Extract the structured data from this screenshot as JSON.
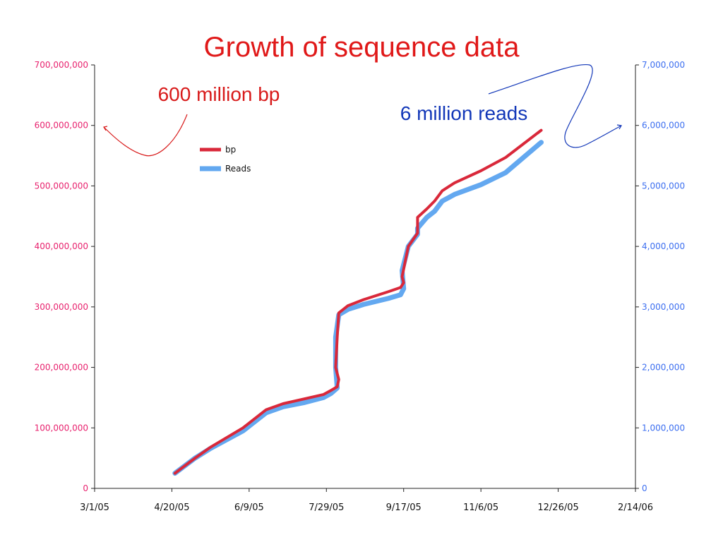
{
  "colors": {
    "bp": "#d9283a",
    "reads": "#63a8f0",
    "left_axis": "#e8226e",
    "right_axis": "#3d6ff0",
    "title": "#e01818",
    "annot_bp": "#d81a1a",
    "annot_reads": "#1237b8",
    "axis_line": "#222222"
  },
  "chart_data": {
    "type": "line",
    "title": "Growth of sequence data",
    "x_tick_labels": [
      "3/1/05",
      "4/20/05",
      "6/9/05",
      "7/29/05",
      "9/17/05",
      "11/6/05",
      "12/26/05",
      "2/14/06"
    ],
    "x_ticks_iso": [
      "2005-03-01",
      "2005-04-20",
      "2005-06-09",
      "2005-07-29",
      "2005-09-17",
      "2005-11-06",
      "2005-12-26",
      "2006-02-14"
    ],
    "xlim": [
      "2005-03-01",
      "2006-02-14"
    ],
    "y_left_ticks": [
      "0",
      "100,000,000",
      "200,000,000",
      "300,000,000",
      "400,000,000",
      "500,000,000",
      "600,000,000",
      "700,000,000"
    ],
    "y_left_lim": [
      0,
      700000000
    ],
    "y_right_ticks": [
      "0",
      "1,000,000",
      "2,000,000",
      "3,000,000",
      "4,000,000",
      "5,000,000",
      "6,000,000",
      "7,000,000"
    ],
    "y_right_lim": [
      0,
      7000000
    ],
    "legend_position": "upper-left",
    "series": [
      {
        "name": "bp",
        "axis": "left",
        "x": [
          "2005-04-22",
          "2005-05-05",
          "2005-05-15",
          "2005-06-05",
          "2005-06-20",
          "2005-07-01",
          "2005-07-15",
          "2005-07-27",
          "2005-08-01",
          "2005-08-05",
          "2005-08-06",
          "2005-08-04",
          "2005-08-05",
          "2005-08-06",
          "2005-08-12",
          "2005-08-22",
          "2005-09-07",
          "2005-09-15",
          "2005-09-17",
          "2005-09-16",
          "2005-09-20",
          "2005-09-26",
          "2005-09-26",
          "2005-10-02",
          "2005-10-07",
          "2005-10-12",
          "2005-10-20",
          "2005-11-06",
          "2005-11-22",
          "2005-12-15"
        ],
        "y": [
          25000000,
          50000000,
          68000000,
          100000000,
          130000000,
          140000000,
          148000000,
          155000000,
          162000000,
          168000000,
          180000000,
          200000000,
          250000000,
          290000000,
          302000000,
          312000000,
          325000000,
          332000000,
          340000000,
          350000000,
          400000000,
          422000000,
          448000000,
          462000000,
          475000000,
          492000000,
          505000000,
          525000000,
          547000000,
          592000000
        ]
      },
      {
        "name": "Reads",
        "axis": "right",
        "x": [
          "2005-04-22",
          "2005-05-05",
          "2005-05-15",
          "2005-06-05",
          "2005-06-20",
          "2005-07-01",
          "2005-07-15",
          "2005-07-27",
          "2005-08-01",
          "2005-08-05",
          "2005-08-04",
          "2005-08-04",
          "2005-08-06",
          "2005-08-12",
          "2005-08-22",
          "2005-09-07",
          "2005-09-15",
          "2005-09-17",
          "2005-09-16",
          "2005-09-20",
          "2005-09-26",
          "2005-09-26",
          "2005-10-02",
          "2005-10-07",
          "2005-10-12",
          "2005-10-20",
          "2005-11-06",
          "2005-11-22",
          "2005-12-15"
        ],
        "y": [
          250000,
          500000,
          660000,
          950000,
          1250000,
          1350000,
          1420000,
          1500000,
          1570000,
          1660000,
          2000000,
          2500000,
          2870000,
          2960000,
          3040000,
          3140000,
          3200000,
          3300000,
          3600000,
          4000000,
          4200000,
          4300000,
          4480000,
          4580000,
          4750000,
          4860000,
          5020000,
          5220000,
          5720000
        ]
      }
    ],
    "annotations": [
      {
        "text": "600 million bp",
        "points_to": "left axis 600,000,000"
      },
      {
        "text": "6 million reads",
        "points_to": "right axis 6,000,000"
      }
    ]
  }
}
